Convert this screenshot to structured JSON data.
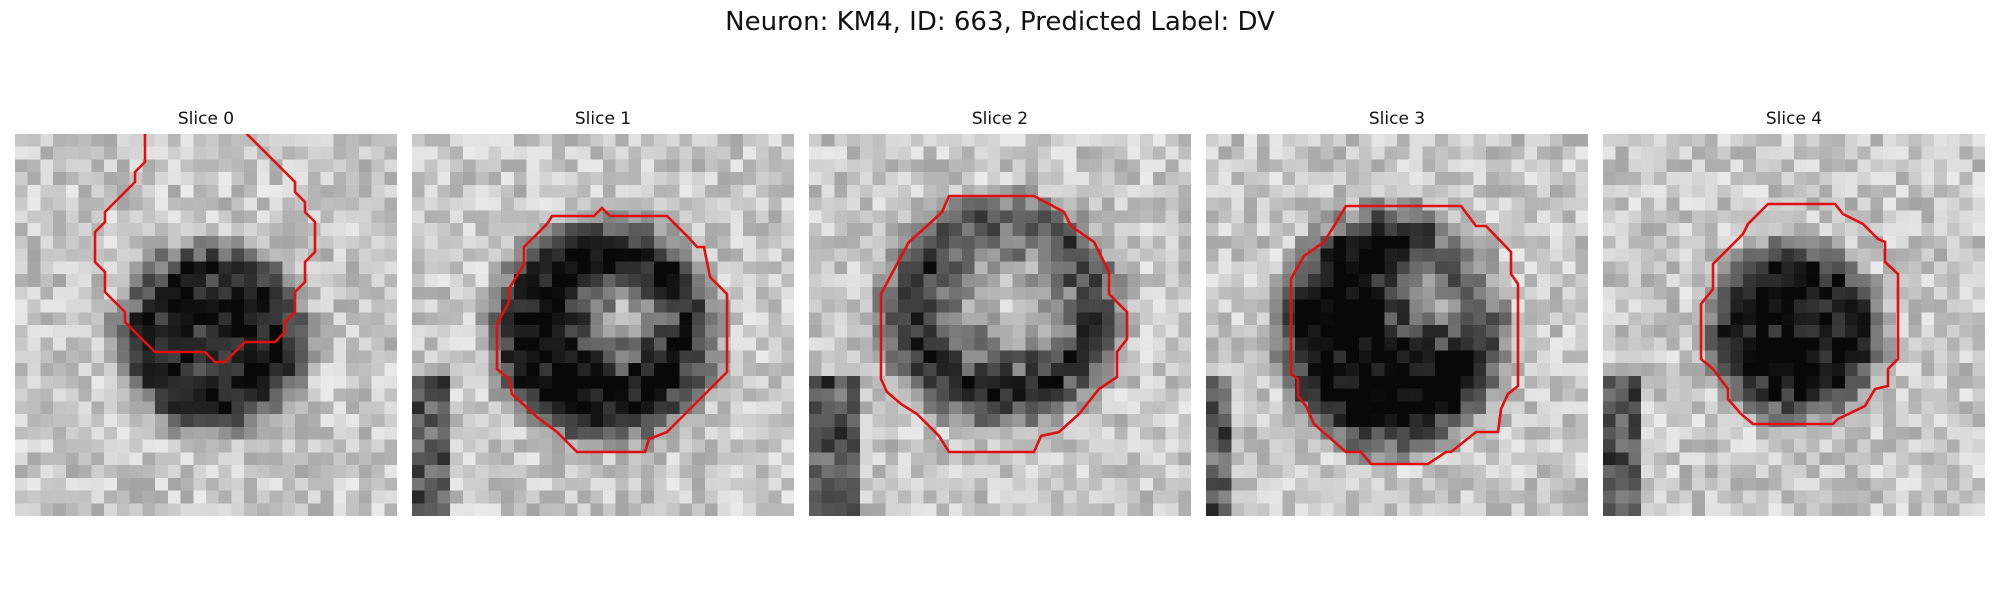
{
  "figure": {
    "title": "Neuron: KM4, ID: 663, Predicted Label: DV"
  },
  "panels": [
    {
      "title": "Slice 0"
    },
    {
      "title": "Slice 1"
    },
    {
      "title": "Slice 2"
    },
    {
      "title": "Slice 3"
    },
    {
      "title": "Slice 4"
    }
  ],
  "colors": {
    "contour": "#e01010",
    "background": "#ffffff"
  }
}
